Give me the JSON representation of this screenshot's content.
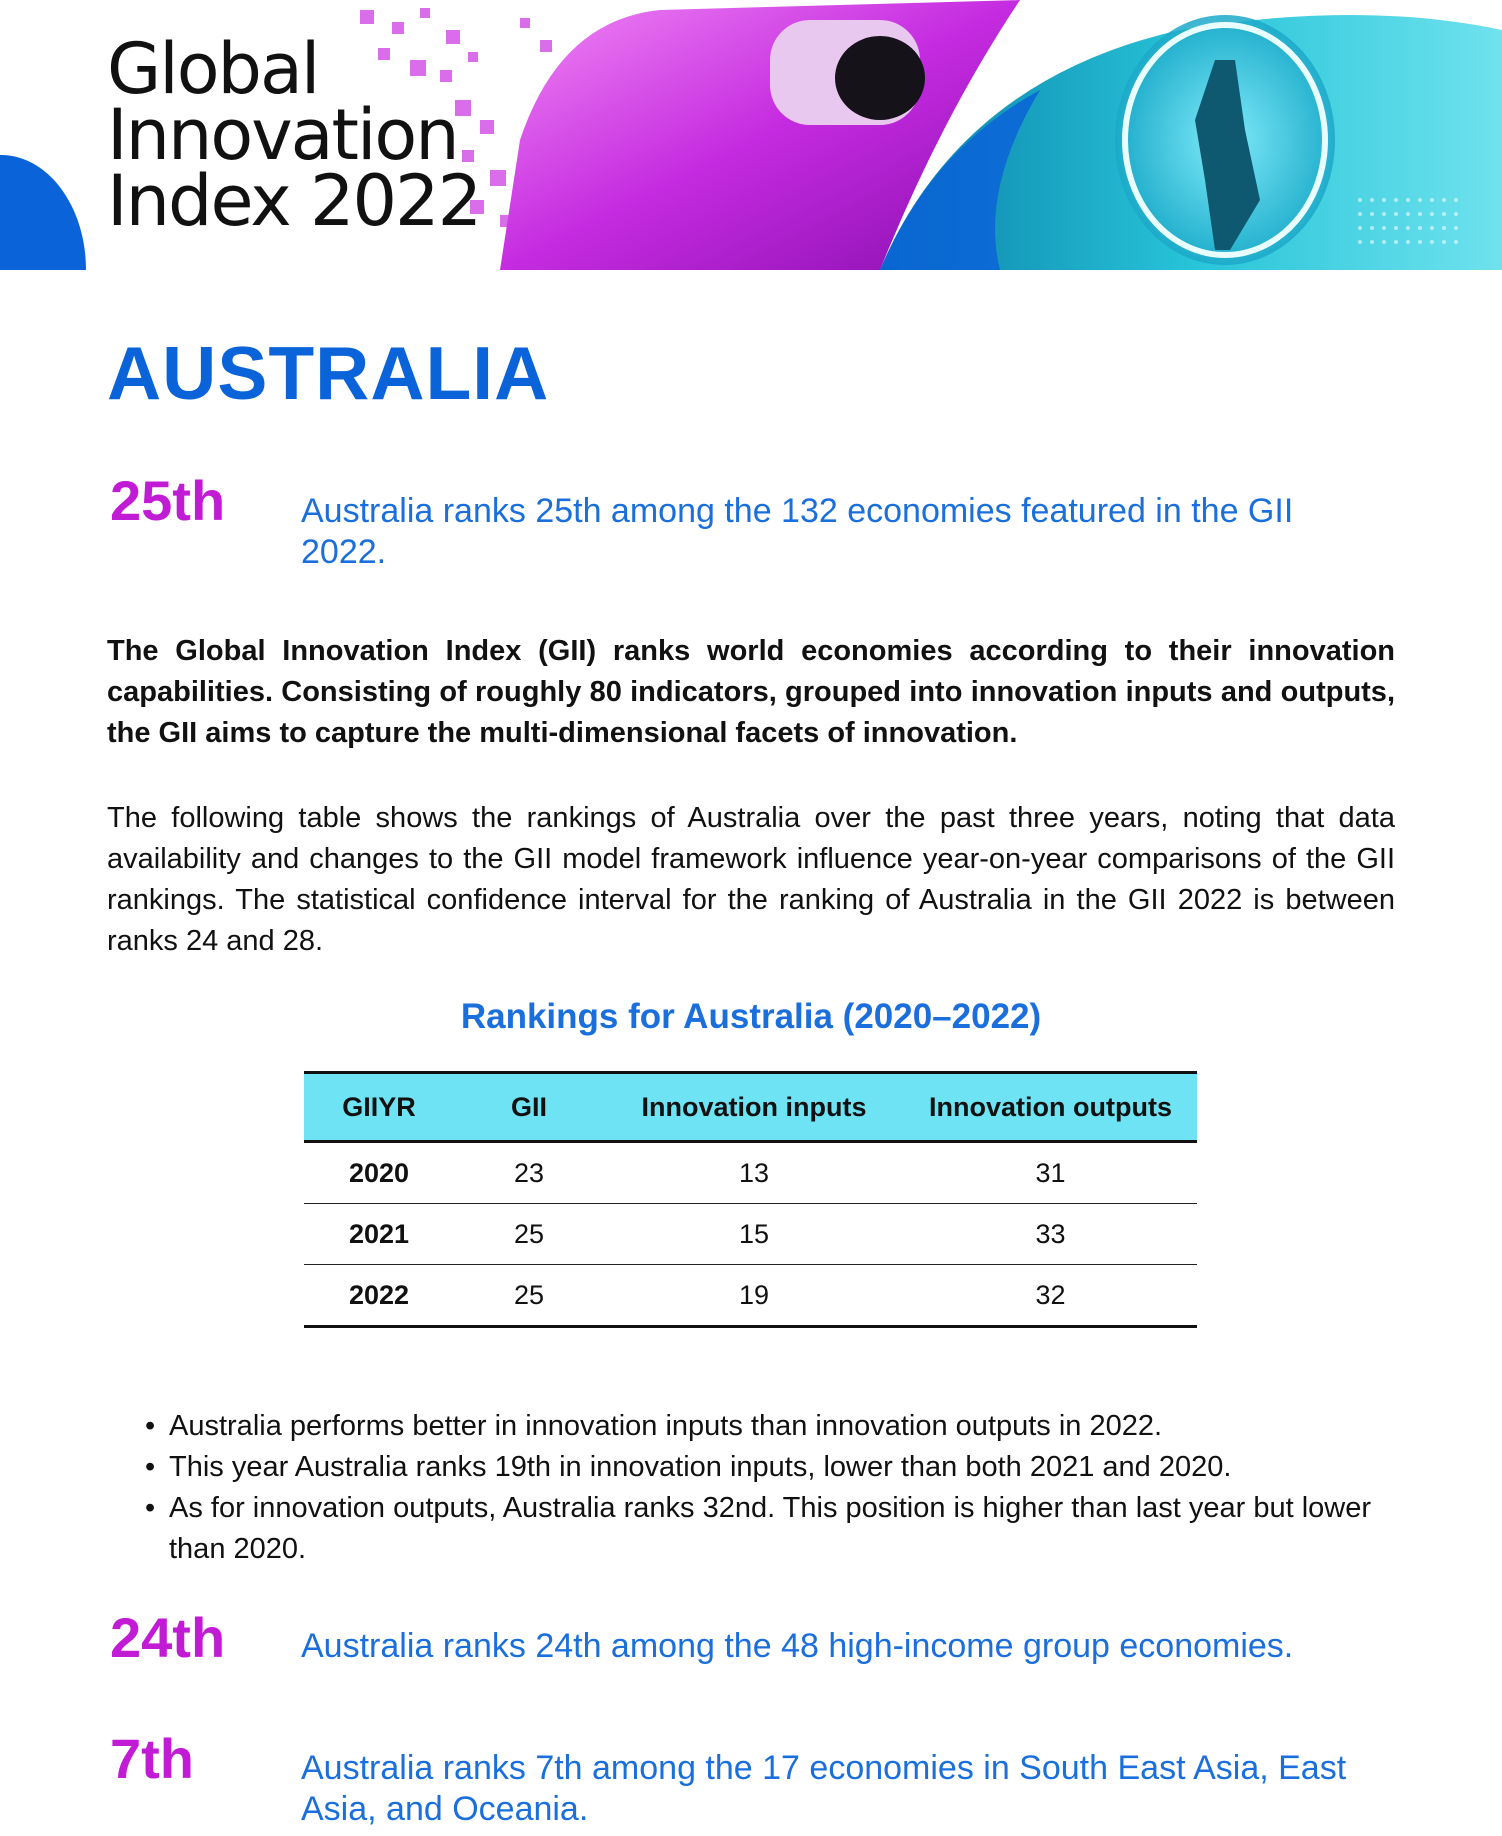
{
  "banner": {
    "title_lines": [
      "Global",
      "Innovation",
      "Index 2022"
    ]
  },
  "country": "AUSTRALIA",
  "gii_rank": {
    "rank": "25th",
    "text": "Australia ranks 25th among the 132 economies featured in the GII 2022."
  },
  "intro": "The Global Innovation Index (GII) ranks world economies according to their innovation capabilities.  Consisting of roughly 80 indicators, grouped into innovation inputs and outputs, the GII aims to capture the multi-dimensional facets of innovation.",
  "table_intro": "The following table shows the rankings of Australia over the past three years, noting that data availability and changes to the GII model framework influence year-on-year comparisons of the GII rankings. The statistical confidence interval for the ranking of Australia in the GII 2022 is between ranks 24 and 28.",
  "table": {
    "title": "Rankings for Australia (2020–2022)",
    "headers": [
      "GIIYR",
      "GII",
      "Innovation inputs",
      "Innovation outputs"
    ],
    "rows": [
      [
        "2020",
        "23",
        "13",
        "31"
      ],
      [
        "2021",
        "25",
        "15",
        "33"
      ],
      [
        "2022",
        "25",
        "19",
        "32"
      ]
    ]
  },
  "bullets": [
    "Australia performs better in innovation inputs than innovation outputs in 2022.",
    "This year Australia ranks 19th in innovation inputs, lower than both 2021 and 2020.",
    "As for innovation outputs, Australia ranks 32nd. This position is higher than last year but lower than 2020."
  ],
  "bullet_symbol": "•",
  "income_rank": {
    "rank": "24th",
    "text": "Australia ranks 24th among the 48 high-income group economies."
  },
  "region_rank": {
    "rank": "7th",
    "text": "Australia ranks 7th among the 17 economies in South East Asia, East Asia, and Oceania."
  },
  "colors": {
    "headline_blue": "#0a63d8",
    "rank_magenta": "#c21bd6",
    "link_blue": "#1a6fdc",
    "table_header_cyan": "#6de3f3"
  }
}
